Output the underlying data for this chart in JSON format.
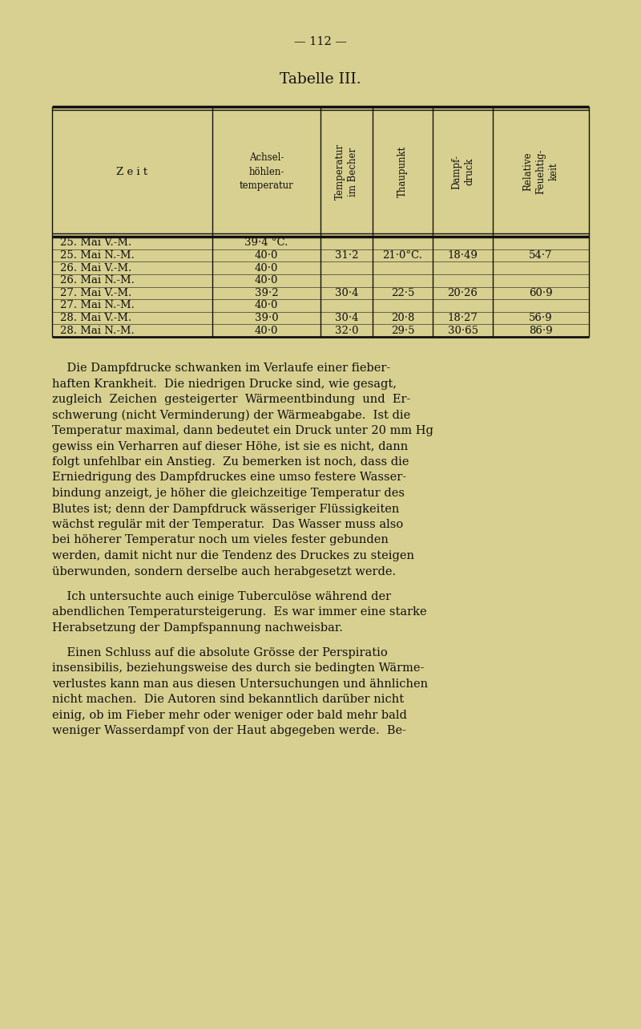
{
  "background_color": "#d8d090",
  "page_number": "— 112 —",
  "table_title": "Tabelle III.",
  "rows": [
    [
      "25. Mai V.-M.",
      "39·4 °C.",
      "",
      "",
      "",
      ""
    ],
    [
      "25. Mai N.-M.",
      "40·0",
      "31·2",
      "21·0°C.",
      "18·49",
      "54·7"
    ],
    [
      "26. Mai V.-M.",
      "40·0",
      "",
      "",
      "",
      ""
    ],
    [
      "26. Mai N.-M.",
      "40·0",
      "",
      "",
      "",
      ""
    ],
    [
      "27. Mai V.-M.",
      "39·2",
      "30·4",
      "22·5",
      "20·26",
      "60·9"
    ],
    [
      "27. Mai N.-M.",
      "40·0",
      "",
      "",
      "",
      ""
    ],
    [
      "28. Mai V.-M.",
      "39·0",
      "30·4",
      "20·8",
      "18·27",
      "56·9"
    ],
    [
      "28. Mai N.-M.",
      "40·0",
      "32·0",
      "29·5",
      "30·65",
      "86·9"
    ]
  ],
  "header_col0": "Z e i t",
  "header_col1_line1": "Achsel-",
  "header_col1_line2": "höhlen-",
  "header_col1_line3": "temperatur",
  "header_col2_rot": "Temperatur\nim Becher",
  "header_col3_rot": "Thaupunkt",
  "header_col4_rot": "Dampf-\ndruck",
  "header_col5_rot": "Relative\nFeuehtig-\nkeit",
  "para1_lines": [
    "    Die Dampfdrucke schwanken im Verlaufe einer fieber-",
    "haften Krankheit.  Die niedrigen Drucke sind, wie gesagt,",
    "zugleich  Zeichen  gesteigerter  Wärmeentbindung  und  Er-",
    "schwerung (nicht Verminderung) der Wärmeabgabe.  Ist die",
    "Temperatur maximal, dann bedeutet ein Druck unter 20 mm Hg",
    "gewiss ein Verharren auf dieser Höhe, ist sie es nicht, dann",
    "folgt unfehlbar ein Anstieg.  Zu bemerken ist noch, dass die",
    "Erniedrigung des Dampfdruckes eine umso festere Wasser-",
    "bindung anzeigt, je höher die gleichzeitige Temperatur des",
    "Blutes ist; denn der Dampfdruck wässeriger Flüssigkeiten",
    "wächst regulär mit der Temperatur.  Das Wasser muss also",
    "bei höherer Temperatur noch um vieles fester gebunden",
    "werden, damit nicht nur die Tendenz des Druckes zu steigen",
    "überwunden, sondern derselbe auch herabgesetzt werde."
  ],
  "para1_italic_line": "Temperatur maximal, dann bedeutet ein Druck unter 20 mm Hg",
  "para2_lines": [
    "    Ich untersuchte auch einige Tuberculöse während der",
    "abendlichen Temperatursteigerung.  Es war immer eine starke",
    "Herabsetzung der Dampfspannung nachweisbar."
  ],
  "para3_lines": [
    "    Einen Schluss auf die absolute Grösse der Perspiratio",
    "insensibilis, beziehungsweise des durch sie bedingten Wärme-",
    "verlustes kann man aus diesen Untersuchungen und ähnlichen",
    "nicht machen.  Die Autoren sind bekanntlich darüber nicht",
    "einig, ob im Fieber mehr oder weniger oder bald mehr bald",
    "weniger Wasserdampf von der Haut abgegeben werde.  Be-"
  ],
  "text_color": "#111111",
  "line_color": "#111111",
  "font_size_pagenum": 10.5,
  "font_size_title": 13.5,
  "font_size_header": 8.5,
  "font_size_data": 9.5,
  "font_size_body": 10.5
}
